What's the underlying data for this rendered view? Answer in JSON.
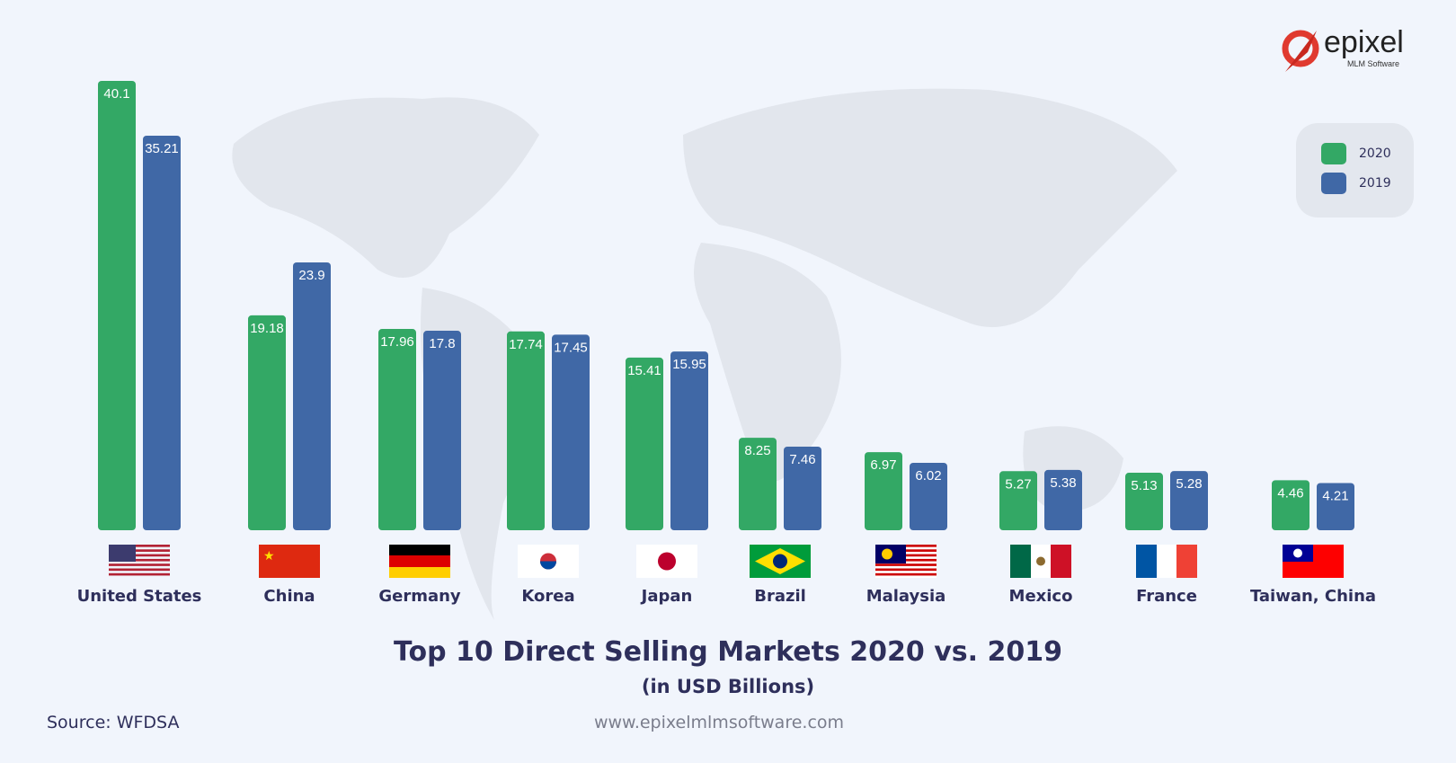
{
  "brand": {
    "name": "epixel",
    "tagline": "MLM Software"
  },
  "legend": {
    "items": [
      {
        "label": "2020",
        "color": "#33a865"
      },
      {
        "label": "2019",
        "color": "#4068a6"
      }
    ],
    "placement": "top-right"
  },
  "footer": {
    "source": "Source: WFDSA",
    "url": "www.epixelmlmsoftware.com"
  },
  "chart_data": {
    "type": "bar",
    "title": "Top 10 Direct Selling Markets 2020 vs. 2019",
    "subtitle": "(in USD Billions)",
    "categories": [
      "United States",
      "China",
      "Germany",
      "Korea",
      "Japan",
      "Brazil",
      "Malaysia",
      "Mexico",
      "France",
      "Taiwan, China"
    ],
    "series": [
      {
        "name": "2020",
        "color": "#33a865",
        "values": [
          40.1,
          19.18,
          17.96,
          17.74,
          15.41,
          8.25,
          6.97,
          5.27,
          5.13,
          4.46
        ]
      },
      {
        "name": "2019",
        "color": "#4068a6",
        "values": [
          35.21,
          23.9,
          17.8,
          17.45,
          15.95,
          7.46,
          6.02,
          5.38,
          5.28,
          4.21
        ]
      }
    ],
    "data_labels": true,
    "grid": false,
    "ylim": [
      0,
      40.1
    ]
  }
}
